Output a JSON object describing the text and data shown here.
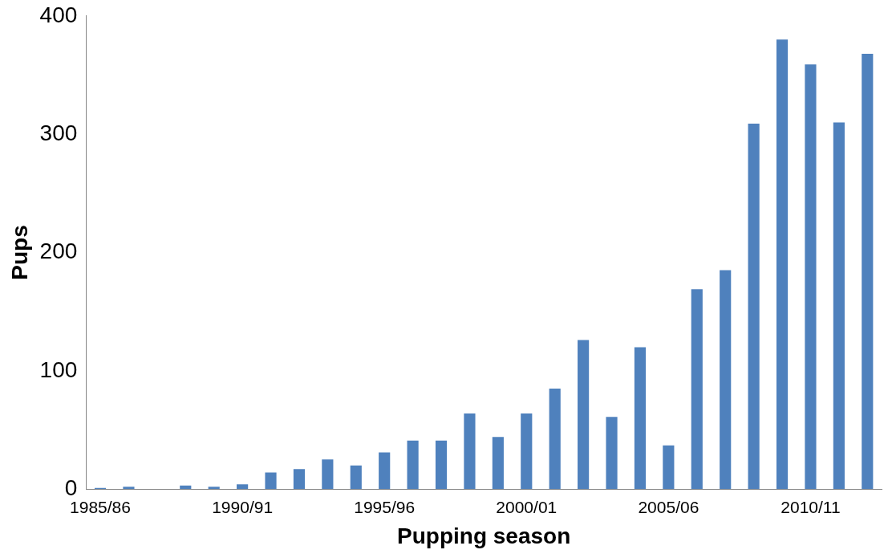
{
  "chart_data": {
    "type": "bar",
    "xlabel": "Pupping season",
    "ylabel": "Pups",
    "categories": [
      "1985/86",
      null,
      null,
      null,
      null,
      "1990/91",
      null,
      null,
      null,
      null,
      "1995/96",
      null,
      null,
      null,
      null,
      "2000/01",
      null,
      null,
      null,
      null,
      "2005/06",
      null,
      null,
      null,
      null,
      "2010/11",
      null,
      null
    ],
    "values": [
      1,
      2,
      0,
      3,
      2,
      4,
      14,
      17,
      25,
      20,
      31,
      41,
      41,
      64,
      44,
      64,
      85,
      126,
      61,
      120,
      37,
      169,
      185,
      309,
      380,
      359,
      310,
      368
    ],
    "color": "#4f81bd",
    "ylim": [
      0,
      400
    ],
    "yticks": [
      0,
      100,
      200,
      300,
      400
    ],
    "grid": false,
    "legend": false
  }
}
